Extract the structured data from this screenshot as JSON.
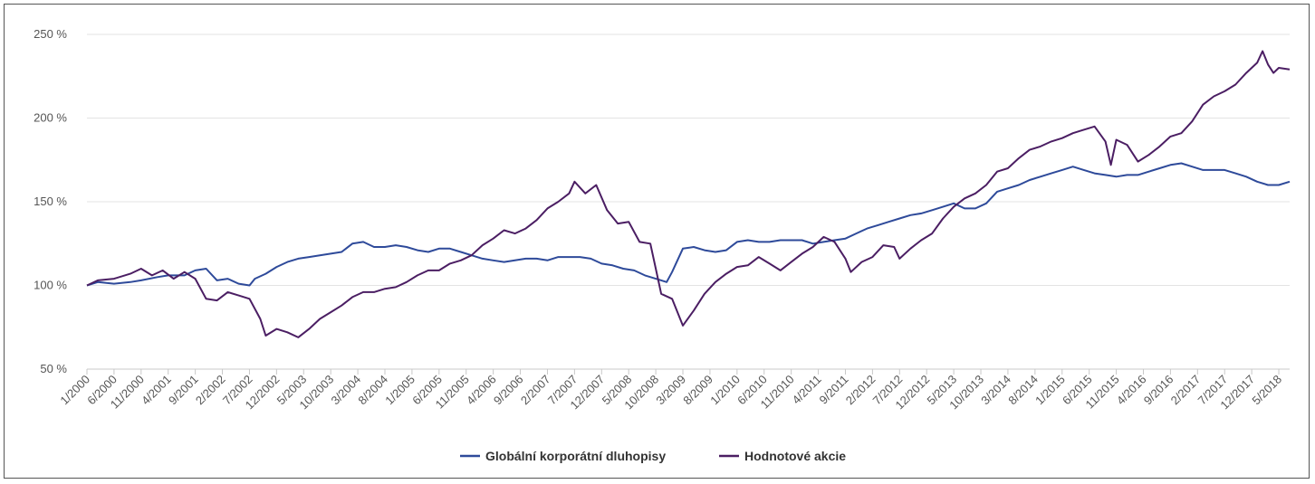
{
  "chart_data": {
    "type": "line",
    "y_ticks": [
      "50 %",
      "100 %",
      "150 %",
      "200 %",
      "250 %"
    ],
    "y_tick_values": [
      50,
      100,
      150,
      200,
      250
    ],
    "ylim": [
      50,
      250
    ],
    "x_start": "1/2000",
    "x_end": "7/2018",
    "x_tick_labels": [
      "1/2000",
      "6/2000",
      "11/2000",
      "4/2001",
      "9/2001",
      "2/2002",
      "7/2002",
      "12/2002",
      "5/2003",
      "10/2003",
      "3/2004",
      "8/2004",
      "1/2005",
      "6/2005",
      "11/2005",
      "4/2006",
      "9/2006",
      "2/2007",
      "7/2007",
      "12/2007",
      "5/2008",
      "10/2008",
      "3/2009",
      "8/2009",
      "1/2010",
      "6/2010",
      "11/2010",
      "4/2011",
      "9/2011",
      "2/2012",
      "7/2012",
      "12/2012",
      "5/2013",
      "10/2013",
      "3/2014",
      "8/2014",
      "1/2015",
      "6/2015",
      "11/2015",
      "4/2016",
      "9/2016",
      "2/2017",
      "7/2017",
      "12/2017",
      "5/2018"
    ],
    "grid": true,
    "legend_position": "bottom-center",
    "series": [
      {
        "name": "Globální korporátní dluhopisy",
        "color": "#2e4a9a",
        "points": [
          [
            "1/2000",
            100
          ],
          [
            "3/2000",
            102
          ],
          [
            "6/2000",
            101
          ],
          [
            "9/2000",
            102
          ],
          [
            "11/2000",
            103
          ],
          [
            "2/2001",
            105
          ],
          [
            "4/2001",
            106
          ],
          [
            "7/2001",
            106
          ],
          [
            "9/2001",
            109
          ],
          [
            "11/2001",
            110
          ],
          [
            "1/2002",
            103
          ],
          [
            "3/2002",
            104
          ],
          [
            "5/2002",
            101
          ],
          [
            "7/2002",
            100
          ],
          [
            "8/2002",
            104
          ],
          [
            "10/2002",
            107
          ],
          [
            "12/2002",
            111
          ],
          [
            "2/2003",
            114
          ],
          [
            "4/2003",
            116
          ],
          [
            "6/2003",
            117
          ],
          [
            "8/2003",
            118
          ],
          [
            "10/2003",
            119
          ],
          [
            "12/2003",
            120
          ],
          [
            "2/2004",
            125
          ],
          [
            "4/2004",
            126
          ],
          [
            "6/2004",
            123
          ],
          [
            "8/2004",
            123
          ],
          [
            "10/2004",
            124
          ],
          [
            "12/2004",
            123
          ],
          [
            "2/2005",
            121
          ],
          [
            "4/2005",
            120
          ],
          [
            "6/2005",
            122
          ],
          [
            "8/2005",
            122
          ],
          [
            "10/2005",
            120
          ],
          [
            "12/2005",
            118
          ],
          [
            "2/2006",
            116
          ],
          [
            "4/2006",
            115
          ],
          [
            "6/2006",
            114
          ],
          [
            "8/2006",
            115
          ],
          [
            "10/2006",
            116
          ],
          [
            "12/2006",
            116
          ],
          [
            "2/2007",
            115
          ],
          [
            "4/2007",
            117
          ],
          [
            "6/2007",
            117
          ],
          [
            "8/2007",
            117
          ],
          [
            "10/2007",
            116
          ],
          [
            "12/2007",
            113
          ],
          [
            "2/2008",
            112
          ],
          [
            "4/2008",
            110
          ],
          [
            "6/2008",
            109
          ],
          [
            "8/2008",
            106
          ],
          [
            "10/2008",
            104
          ],
          [
            "12/2008",
            102
          ],
          [
            "1/2009",
            108
          ],
          [
            "3/2009",
            122
          ],
          [
            "5/2009",
            123
          ],
          [
            "7/2009",
            121
          ],
          [
            "9/2009",
            120
          ],
          [
            "11/2009",
            121
          ],
          [
            "1/2010",
            126
          ],
          [
            "3/2010",
            127
          ],
          [
            "5/2010",
            126
          ],
          [
            "7/2010",
            126
          ],
          [
            "9/2010",
            127
          ],
          [
            "11/2010",
            127
          ],
          [
            "1/2011",
            127
          ],
          [
            "3/2011",
            125
          ],
          [
            "5/2011",
            126
          ],
          [
            "7/2011",
            127
          ],
          [
            "9/2011",
            128
          ],
          [
            "11/2011",
            131
          ],
          [
            "1/2012",
            134
          ],
          [
            "3/2012",
            136
          ],
          [
            "5/2012",
            138
          ],
          [
            "7/2012",
            140
          ],
          [
            "9/2012",
            142
          ],
          [
            "11/2012",
            143
          ],
          [
            "1/2013",
            145
          ],
          [
            "3/2013",
            147
          ],
          [
            "5/2013",
            149
          ],
          [
            "7/2013",
            146
          ],
          [
            "9/2013",
            146
          ],
          [
            "11/2013",
            149
          ],
          [
            "1/2014",
            156
          ],
          [
            "3/2014",
            158
          ],
          [
            "5/2014",
            160
          ],
          [
            "7/2014",
            163
          ],
          [
            "9/2014",
            165
          ],
          [
            "11/2014",
            167
          ],
          [
            "1/2015",
            169
          ],
          [
            "3/2015",
            171
          ],
          [
            "5/2015",
            169
          ],
          [
            "7/2015",
            167
          ],
          [
            "9/2015",
            166
          ],
          [
            "11/2015",
            165
          ],
          [
            "1/2016",
            166
          ],
          [
            "3/2016",
            166
          ],
          [
            "5/2016",
            168
          ],
          [
            "7/2016",
            170
          ],
          [
            "9/2016",
            172
          ],
          [
            "11/2016",
            173
          ],
          [
            "1/2017",
            171
          ],
          [
            "3/2017",
            169
          ],
          [
            "5/2017",
            169
          ],
          [
            "7/2017",
            169
          ],
          [
            "9/2017",
            167
          ],
          [
            "11/2017",
            165
          ],
          [
            "1/2018",
            162
          ],
          [
            "3/2018",
            160
          ],
          [
            "5/2018",
            160
          ],
          [
            "7/2018",
            162
          ]
        ]
      },
      {
        "name": "Hodnotové akcie",
        "color": "#4b1e63",
        "points": [
          [
            "1/2000",
            100
          ],
          [
            "3/2000",
            103
          ],
          [
            "6/2000",
            104
          ],
          [
            "9/2000",
            107
          ],
          [
            "11/2000",
            110
          ],
          [
            "1/2001",
            106
          ],
          [
            "3/2001",
            109
          ],
          [
            "5/2001",
            104
          ],
          [
            "7/2001",
            108
          ],
          [
            "9/2001",
            104
          ],
          [
            "11/2001",
            92
          ],
          [
            "1/2002",
            91
          ],
          [
            "3/2002",
            96
          ],
          [
            "5/2002",
            94
          ],
          [
            "7/2002",
            92
          ],
          [
            "9/2002",
            80
          ],
          [
            "10/2002",
            70
          ],
          [
            "12/2002",
            74
          ],
          [
            "2/2003",
            72
          ],
          [
            "4/2003",
            69
          ],
          [
            "6/2003",
            74
          ],
          [
            "8/2003",
            80
          ],
          [
            "10/2003",
            84
          ],
          [
            "12/2003",
            88
          ],
          [
            "2/2004",
            93
          ],
          [
            "4/2004",
            96
          ],
          [
            "6/2004",
            96
          ],
          [
            "8/2004",
            98
          ],
          [
            "10/2004",
            99
          ],
          [
            "12/2004",
            102
          ],
          [
            "2/2005",
            106
          ],
          [
            "4/2005",
            109
          ],
          [
            "6/2005",
            109
          ],
          [
            "8/2005",
            113
          ],
          [
            "10/2005",
            115
          ],
          [
            "12/2005",
            118
          ],
          [
            "2/2006",
            124
          ],
          [
            "4/2006",
            128
          ],
          [
            "6/2006",
            133
          ],
          [
            "8/2006",
            131
          ],
          [
            "10/2006",
            134
          ],
          [
            "12/2006",
            139
          ],
          [
            "2/2007",
            146
          ],
          [
            "4/2007",
            150
          ],
          [
            "6/2007",
            155
          ],
          [
            "7/2007",
            162
          ],
          [
            "9/2007",
            155
          ],
          [
            "11/2007",
            160
          ],
          [
            "1/2008",
            145
          ],
          [
            "3/2008",
            137
          ],
          [
            "5/2008",
            138
          ],
          [
            "7/2008",
            126
          ],
          [
            "9/2008",
            125
          ],
          [
            "10/2008",
            110
          ],
          [
            "11/2008",
            95
          ],
          [
            "1/2009",
            92
          ],
          [
            "3/2009",
            76
          ],
          [
            "5/2009",
            85
          ],
          [
            "7/2009",
            95
          ],
          [
            "9/2009",
            102
          ],
          [
            "11/2009",
            107
          ],
          [
            "1/2010",
            111
          ],
          [
            "3/2010",
            112
          ],
          [
            "5/2010",
            117
          ],
          [
            "7/2010",
            113
          ],
          [
            "9/2010",
            109
          ],
          [
            "11/2010",
            114
          ],
          [
            "1/2011",
            119
          ],
          [
            "3/2011",
            123
          ],
          [
            "5/2011",
            129
          ],
          [
            "7/2011",
            126
          ],
          [
            "9/2011",
            116
          ],
          [
            "10/2011",
            108
          ],
          [
            "12/2011",
            114
          ],
          [
            "2/2012",
            117
          ],
          [
            "4/2012",
            124
          ],
          [
            "6/2012",
            123
          ],
          [
            "7/2012",
            116
          ],
          [
            "9/2012",
            122
          ],
          [
            "11/2012",
            127
          ],
          [
            "1/2013",
            131
          ],
          [
            "3/2013",
            140
          ],
          [
            "5/2013",
            147
          ],
          [
            "7/2013",
            152
          ],
          [
            "9/2013",
            155
          ],
          [
            "11/2013",
            160
          ],
          [
            "1/2014",
            168
          ],
          [
            "3/2014",
            170
          ],
          [
            "5/2014",
            176
          ],
          [
            "7/2014",
            181
          ],
          [
            "9/2014",
            183
          ],
          [
            "11/2014",
            186
          ],
          [
            "1/2015",
            188
          ],
          [
            "3/2015",
            191
          ],
          [
            "5/2015",
            193
          ],
          [
            "7/2015",
            195
          ],
          [
            "9/2015",
            186
          ],
          [
            "10/2015",
            172
          ],
          [
            "11/2015",
            187
          ],
          [
            "1/2016",
            184
          ],
          [
            "3/2016",
            174
          ],
          [
            "5/2016",
            178
          ],
          [
            "7/2016",
            183
          ],
          [
            "9/2016",
            189
          ],
          [
            "11/2016",
            191
          ],
          [
            "1/2017",
            198
          ],
          [
            "3/2017",
            208
          ],
          [
            "5/2017",
            213
          ],
          [
            "7/2017",
            216
          ],
          [
            "9/2017",
            220
          ],
          [
            "11/2017",
            227
          ],
          [
            "1/2018",
            233
          ],
          [
            "2/2018",
            240
          ],
          [
            "3/2018",
            232
          ],
          [
            "4/2018",
            227
          ],
          [
            "5/2018",
            230
          ],
          [
            "7/2018",
            229
          ]
        ]
      }
    ]
  }
}
